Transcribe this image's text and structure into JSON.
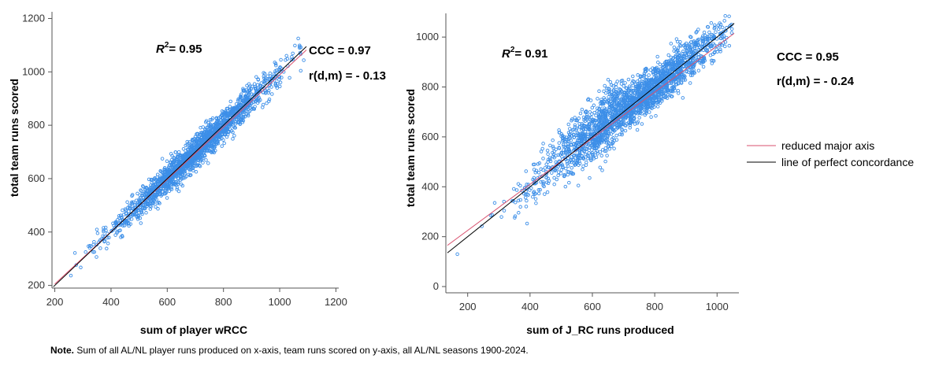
{
  "note": {
    "lead": "Note.",
    "text": " Sum of all AL/NL player runs produced  on x-axis, team runs scored on y-axis, all AL/NL seasons 1900-2024."
  },
  "legend": {
    "items": [
      {
        "label": "reduced major axis",
        "color": "#d9506e"
      },
      {
        "label": "line of perfect concordance",
        "color": "#000000"
      }
    ]
  },
  "chart_data": [
    {
      "type": "scatter",
      "xlabel": "sum of player wRCC",
      "ylabel": "total team runs scored",
      "xlim": [
        190,
        1210
      ],
      "ylim": [
        190,
        1225
      ],
      "xticks": [
        200,
        400,
        600,
        800,
        1000,
        1200
      ],
      "yticks": [
        200,
        400,
        600,
        800,
        1000,
        1200
      ],
      "r2_label": "R",
      "r2_value": "= 0.95",
      "ccc": "CCC = 0.97",
      "rdm": "r(d,m) = - 0.13",
      "point_color": "#3d8fe8",
      "cluster": {
        "x_min": 200,
        "x_max": 1090,
        "center": 700,
        "sd": 140,
        "slope": 1.0,
        "intercept": 0,
        "noise": 28
      },
      "reduced_major_axis": [
        [
          200,
          205
        ],
        [
          1095,
          1082
        ]
      ],
      "perfect_concordance": [
        [
          195,
          195
        ],
        [
          1095,
          1095
        ]
      ]
    },
    {
      "type": "scatter",
      "xlabel": "sum of J_RC runs produced",
      "ylabel": "total team runs scored",
      "xlim": [
        130,
        1070
      ],
      "ylim": [
        -25,
        1095
      ],
      "xticks": [
        200,
        400,
        600,
        800,
        1000
      ],
      "yticks": [
        0,
        200,
        400,
        600,
        800,
        1000
      ],
      "r2_label": "R",
      "r2_value": "= 0.91",
      "ccc": "CCC = 0.95",
      "rdm": "r(d,m) = - 0.24",
      "point_color": "#3d8fe8",
      "cluster": {
        "x_min": 140,
        "x_max": 1050,
        "center": 730,
        "sd": 150,
        "slope": 1.0,
        "intercept": 0,
        "noise": 42
      },
      "reduced_major_axis": [
        [
          135,
          165
        ],
        [
          1055,
          1015
        ]
      ],
      "perfect_concordance": [
        [
          135,
          135
        ],
        [
          1055,
          1055
        ]
      ]
    }
  ]
}
